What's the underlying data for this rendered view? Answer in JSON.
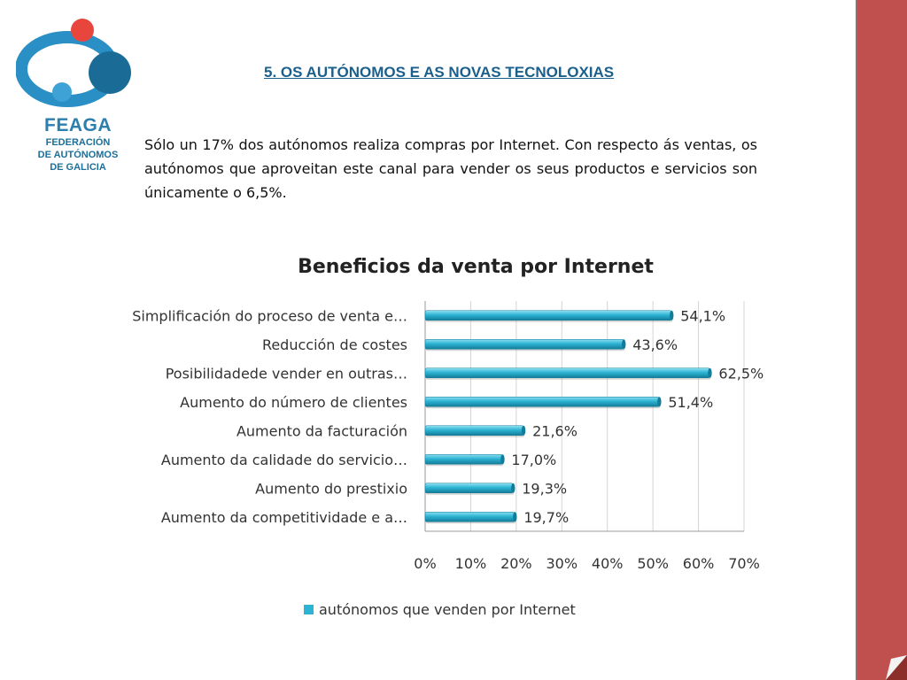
{
  "logo": {
    "abbr": "FEAGA",
    "line1": "FEDERACIÓN",
    "line2": "DE AUTÓNOMOS",
    "line3": "DE GALICIA"
  },
  "header": {
    "title": "5. OS AUTÓNOMOS E AS NOVAS TECNOLOXIAS"
  },
  "intro": "Sólo un 17% dos autónomos realiza compras por Internet. Con respecto ás ventas, os autónomos que aproveitan este canal para vender os seus productos e servicios son únicamente o 6,5%.",
  "colors": {
    "bar": "#2db3d3",
    "bar_light": "#8fe0f2",
    "bar_dark": "#137c99",
    "band": "#c0504d",
    "band_dark": "#8c2f2b"
  },
  "chart_data": {
    "type": "bar",
    "orientation": "horizontal",
    "title": "Beneficios da venta por Internet",
    "categories": [
      "Simplificación do proceso de venta e…",
      "Reducción de costes",
      "Posibilidadede vender en outras…",
      "Aumento do número de clientes",
      "Aumento da facturación",
      "Aumento da calidade do servicio…",
      "Aumento do prestixio",
      "Aumento da competitividade e a…"
    ],
    "series": [
      {
        "name": "autónomos que venden por Internet",
        "values": [
          54.1,
          43.6,
          62.5,
          51.4,
          21.6,
          17.0,
          19.3,
          19.7
        ]
      }
    ],
    "data_labels": [
      "54,1%",
      "43,6%",
      "62,5%",
      "51,4%",
      "21,6%",
      "17,0%",
      "19,3%",
      "19,7%"
    ],
    "x_ticks": [
      "0%",
      "10%",
      "20%",
      "30%",
      "40%",
      "50%",
      "60%",
      "70%"
    ],
    "xlim": [
      0,
      70
    ],
    "grid": true,
    "legend": "bottom"
  }
}
